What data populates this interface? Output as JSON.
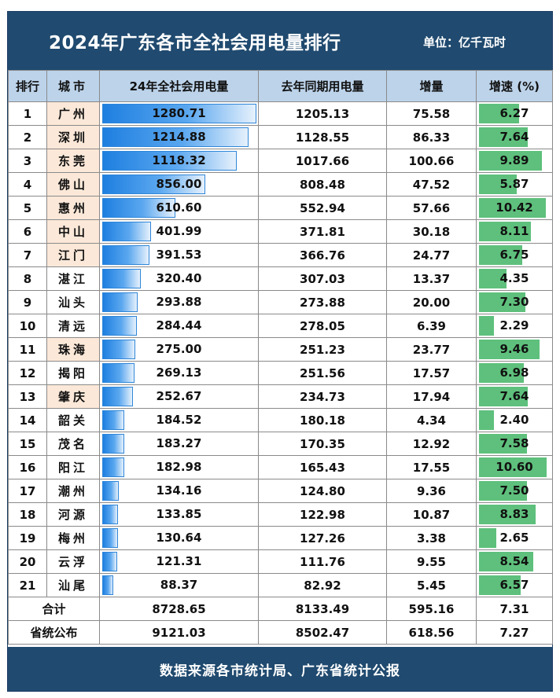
{
  "header": {
    "title": "2024年广东各市全社会用电量排行",
    "unit": "单位：亿千瓦时"
  },
  "columns": [
    "排行",
    "城市",
    "24年全社会用电量",
    "去年同期用电量",
    "增量",
    "增速 (%)"
  ],
  "colors": {
    "header_bg": "#204a6f",
    "col_header_bg": "#bcd3ea",
    "blue_bar": "#1e7fe0",
    "green_bar": "#5ec07c",
    "highlight_city": "#fbe8d8"
  },
  "chart_data": {
    "type": "table",
    "rows": [
      {
        "rank": "1",
        "city": "广州",
        "usage": "1280.71",
        "prev": "1205.13",
        "delta": "75.58",
        "growth": "6.27",
        "highlight": true
      },
      {
        "rank": "2",
        "city": "深圳",
        "usage": "1214.88",
        "prev": "1128.55",
        "delta": "86.33",
        "growth": "7.64",
        "highlight": true
      },
      {
        "rank": "3",
        "city": "东莞",
        "usage": "1118.32",
        "prev": "1017.66",
        "delta": "100.66",
        "growth": "9.89",
        "highlight": true
      },
      {
        "rank": "4",
        "city": "佛山",
        "usage": "856.00",
        "prev": "808.48",
        "delta": "47.52",
        "growth": "5.87",
        "highlight": true
      },
      {
        "rank": "5",
        "city": "惠州",
        "usage": "610.60",
        "prev": "552.94",
        "delta": "57.66",
        "growth": "10.42",
        "highlight": true
      },
      {
        "rank": "6",
        "city": "中山",
        "usage": "401.99",
        "prev": "371.81",
        "delta": "30.18",
        "growth": "8.11",
        "highlight": true
      },
      {
        "rank": "7",
        "city": "江门",
        "usage": "391.53",
        "prev": "366.76",
        "delta": "24.77",
        "growth": "6.75",
        "highlight": true
      },
      {
        "rank": "8",
        "city": "湛江",
        "usage": "320.40",
        "prev": "307.03",
        "delta": "13.37",
        "growth": "4.35",
        "highlight": false
      },
      {
        "rank": "9",
        "city": "汕头",
        "usage": "293.88",
        "prev": "273.88",
        "delta": "20.00",
        "growth": "7.30",
        "highlight": false
      },
      {
        "rank": "10",
        "city": "清远",
        "usage": "284.44",
        "prev": "278.05",
        "delta": "6.39",
        "growth": "2.29",
        "highlight": false
      },
      {
        "rank": "11",
        "city": "珠海",
        "usage": "275.00",
        "prev": "251.23",
        "delta": "23.77",
        "growth": "9.46",
        "highlight": true
      },
      {
        "rank": "12",
        "city": "揭阳",
        "usage": "269.13",
        "prev": "251.56",
        "delta": "17.57",
        "growth": "6.98",
        "highlight": false
      },
      {
        "rank": "13",
        "city": "肇庆",
        "usage": "252.67",
        "prev": "234.73",
        "delta": "17.94",
        "growth": "7.64",
        "highlight": true
      },
      {
        "rank": "14",
        "city": "韶关",
        "usage": "184.52",
        "prev": "180.18",
        "delta": "4.34",
        "growth": "2.40",
        "highlight": false
      },
      {
        "rank": "15",
        "city": "茂名",
        "usage": "183.27",
        "prev": "170.35",
        "delta": "12.92",
        "growth": "7.58",
        "highlight": false
      },
      {
        "rank": "16",
        "city": "阳江",
        "usage": "182.98",
        "prev": "165.43",
        "delta": "17.55",
        "growth": "10.60",
        "highlight": false
      },
      {
        "rank": "17",
        "city": "潮州",
        "usage": "134.16",
        "prev": "124.80",
        "delta": "9.36",
        "growth": "7.50",
        "highlight": false
      },
      {
        "rank": "18",
        "city": "河源",
        "usage": "133.85",
        "prev": "122.98",
        "delta": "10.87",
        "growth": "8.83",
        "highlight": false
      },
      {
        "rank": "19",
        "city": "梅州",
        "usage": "130.64",
        "prev": "127.26",
        "delta": "3.38",
        "growth": "2.65",
        "highlight": false
      },
      {
        "rank": "20",
        "city": "云浮",
        "usage": "121.31",
        "prev": "111.76",
        "delta": "9.55",
        "growth": "8.54",
        "highlight": false
      },
      {
        "rank": "21",
        "city": "汕尾",
        "usage": "88.37",
        "prev": "82.92",
        "delta": "5.45",
        "growth": "6.57",
        "highlight": false
      }
    ],
    "totals": [
      {
        "label": "合计",
        "usage": "8728.65",
        "prev": "8133.49",
        "delta": "595.16",
        "growth": "7.31"
      },
      {
        "label": "省统公布",
        "usage": "9121.03",
        "prev": "8502.47",
        "delta": "618.56",
        "growth": "7.27"
      }
    ]
  },
  "footer": {
    "source": "数据来源各市统计局、广东省统计公报"
  }
}
